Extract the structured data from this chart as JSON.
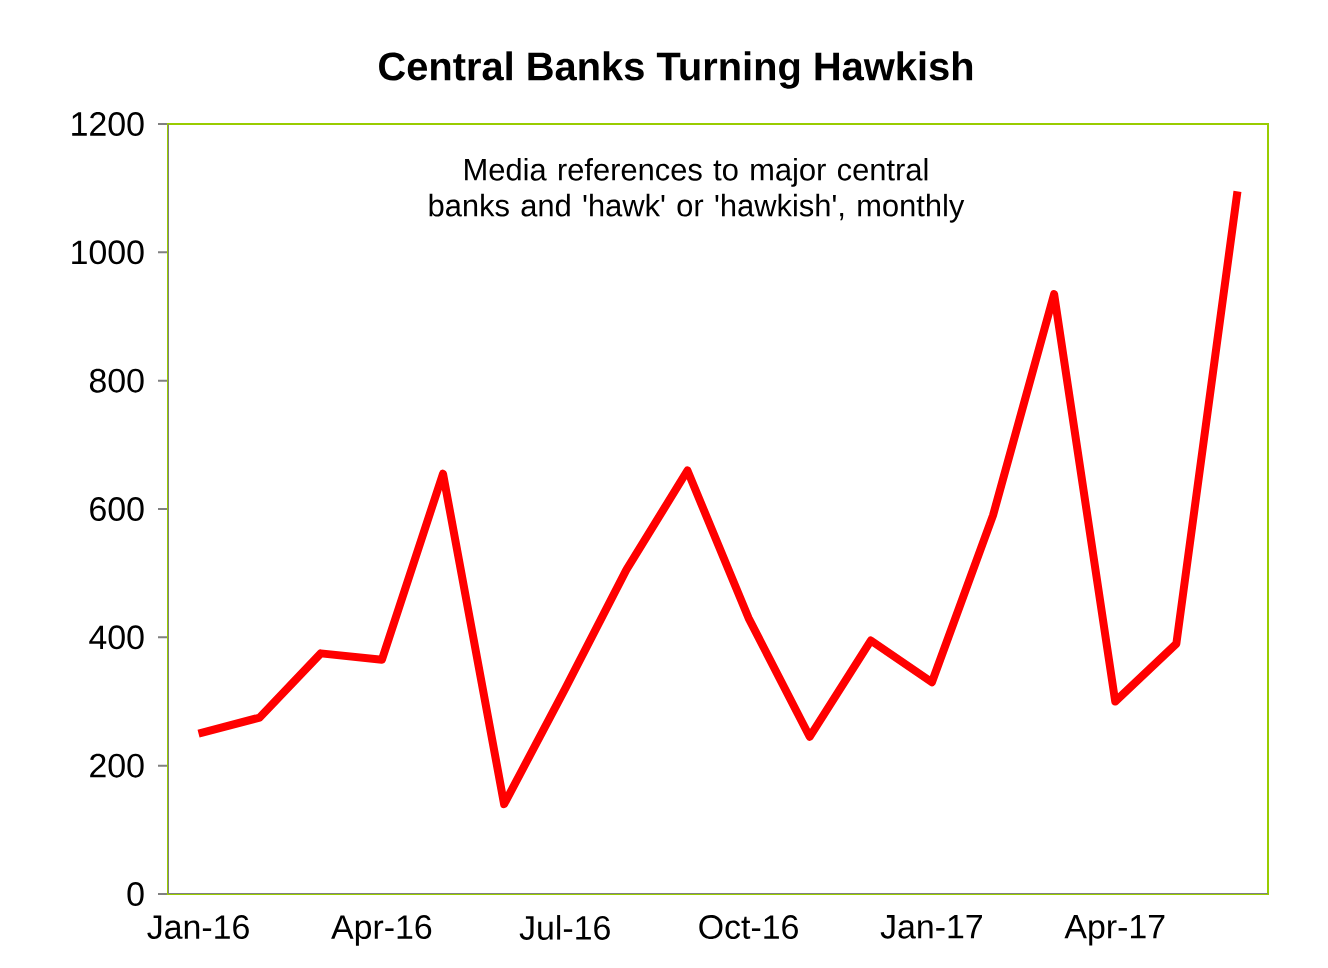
{
  "chart_data": {
    "type": "line",
    "title": "Central Banks Turning Hawkish",
    "annotations": [
      "Media references to major central banks and 'hawk' or 'hawkish', monthly"
    ],
    "categories": [
      "Jan-16",
      null,
      null,
      "Apr-16",
      null,
      null,
      "Jul-16",
      null,
      null,
      "Oct-16",
      null,
      null,
      "Jan-17",
      null,
      null,
      "Apr-17",
      null,
      null
    ],
    "series": [
      {
        "color": "#ff0000",
        "values": [
          250,
          275,
          375,
          365,
          655,
          140,
          320,
          505,
          660,
          430,
          245,
          395,
          330,
          590,
          935,
          300,
          390,
          1095
        ]
      }
    ],
    "ylim": [
      0,
      1200
    ],
    "yticks": [
      0,
      200,
      400,
      600,
      800,
      1000,
      1200
    ],
    "grid": false,
    "marker": "none",
    "line_style": "solid"
  }
}
